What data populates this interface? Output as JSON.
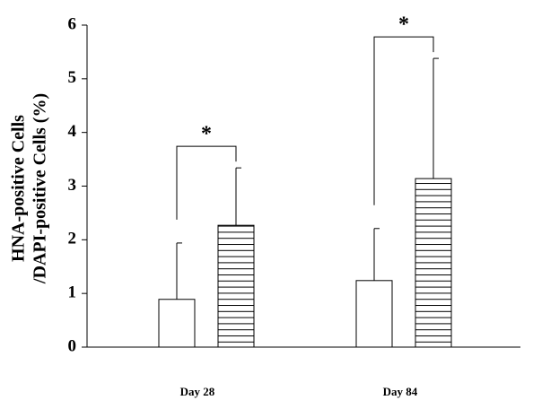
{
  "chart_data": {
    "type": "bar",
    "ylabel": [
      "HNA-positive Cells",
      "/DAPI-positive Cells (%)"
    ],
    "categories": [
      "Day 28",
      "Day 84"
    ],
    "series": [
      {
        "color": "#ffffff",
        "pattern": "none",
        "values": [
          0.89,
          1.24
        ],
        "errors": [
          1.05,
          0.97
        ]
      },
      {
        "color": "#ffffff",
        "pattern": "horizontal-lines",
        "values": [
          2.27,
          3.14
        ],
        "errors": [
          1.07,
          2.24
        ]
      }
    ],
    "significance": [
      "*",
      "*"
    ],
    "ylim": [
      0,
      6
    ],
    "yticks": [
      0,
      1,
      2,
      3,
      4,
      5,
      6
    ],
    "grid": false
  }
}
